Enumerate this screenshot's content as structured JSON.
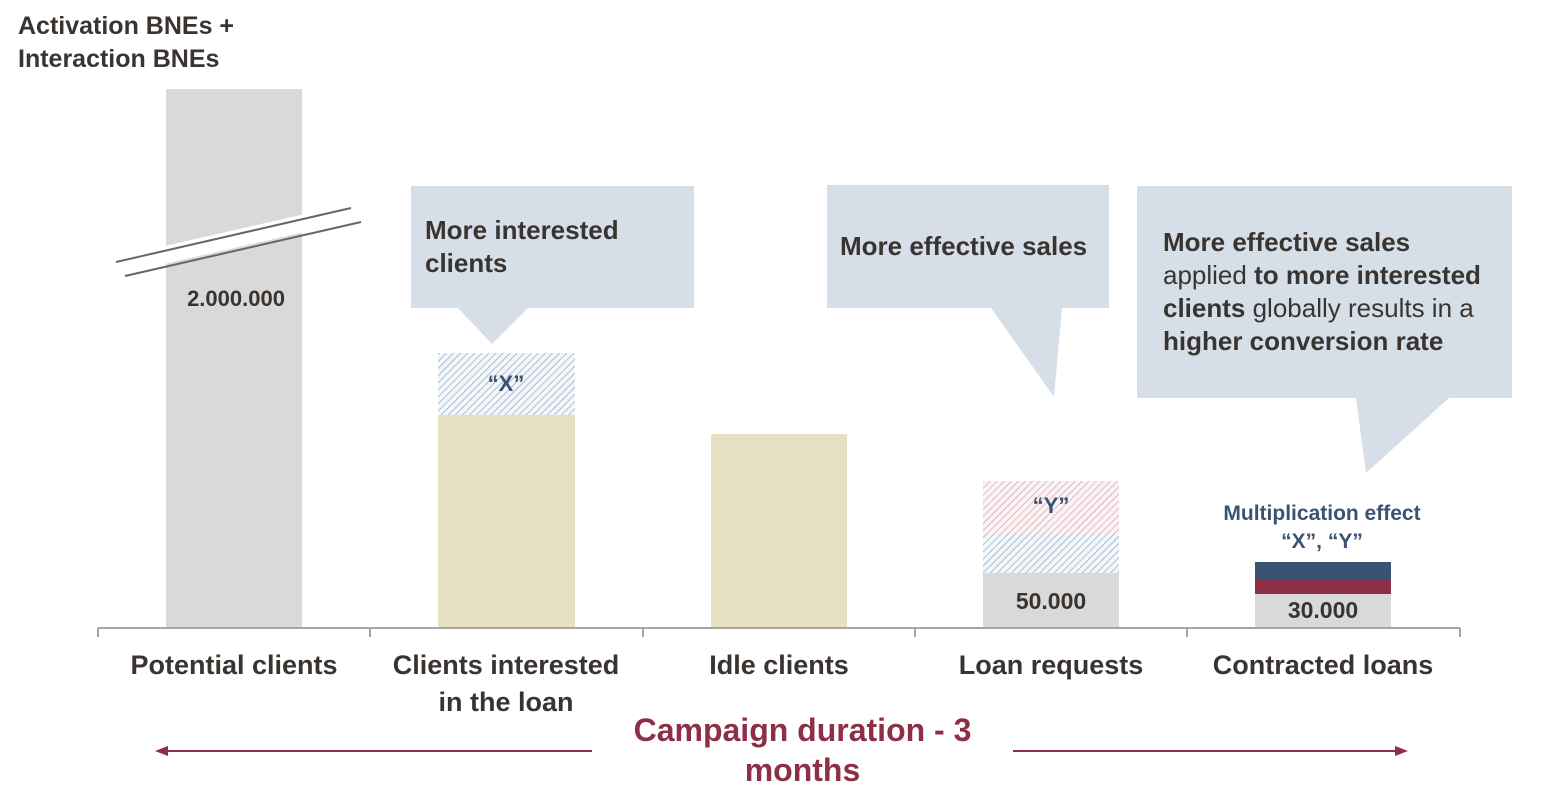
{
  "chart_data": {
    "type": "bar",
    "yaxis_title": [
      "Activation BNEs +",
      "Interaction BNEs"
    ],
    "categories": [
      [
        "Potential clients"
      ],
      [
        "Clients interested",
        "in the loan"
      ],
      [
        "Idle clients"
      ],
      [
        "Loan requests"
      ],
      [
        "Contracted loans"
      ]
    ],
    "values": [
      2000000,
      null,
      null,
      50000,
      30000
    ],
    "bars": [
      {
        "label": "2.000.000",
        "axis_break": true
      },
      {
        "label": "",
        "increment_label": "“X”"
      },
      {
        "label": ""
      },
      {
        "label": "50.000",
        "increment_label": "“Y”"
      },
      {
        "label": "30.000"
      }
    ],
    "annotation": [
      "Multiplication effect",
      "“X”, “Y”"
    ],
    "callouts": [
      {
        "segments": [
          {
            "text": "More interested",
            "bold": true
          },
          {
            "br": true
          },
          {
            "text": "clients",
            "bold": true
          }
        ]
      },
      {
        "segments": [
          {
            "text": "More effective sales",
            "bold": true
          }
        ]
      },
      {
        "segments": [
          {
            "text": "More effective sales",
            "bold": true
          },
          {
            "br": true
          },
          {
            "text": "applied ",
            "bold": false
          },
          {
            "text": "to more interested",
            "bold": true
          },
          {
            "br": true
          },
          {
            "text": "clients",
            "bold": true
          },
          {
            "text": " globally results in a",
            "bold": false
          },
          {
            "br": true
          },
          {
            "text": "higher conversion rate",
            "bold": true
          }
        ]
      }
    ],
    "footer": {
      "text": "Campaign duration - 3 months"
    },
    "colors": {
      "potential": "#d9d9d9",
      "interested": "#e6dfc2",
      "callout": "#d6dfe7",
      "navy": "#3a5373",
      "maroon": "#8e2f48",
      "text": "#3a3431",
      "axis": "#a6a6a6"
    }
  }
}
